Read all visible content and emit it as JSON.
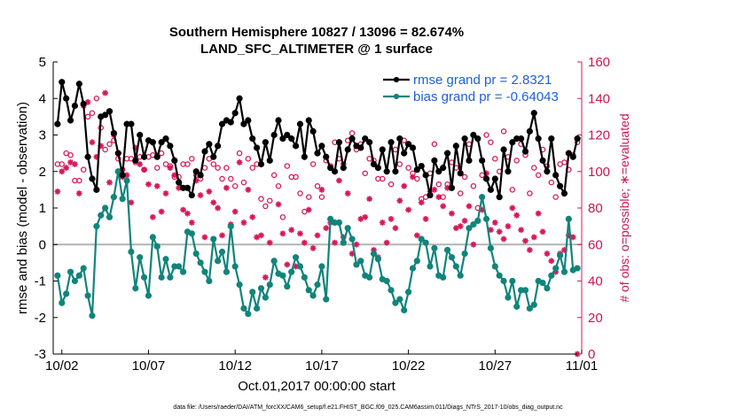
{
  "chart_data": {
    "type": "line",
    "title": "Southern Hemisphere 10827 / 13096 = 82.674%",
    "subtitle": "LAND_SFC_ALTIMETER @ 1 surface",
    "xlabel": "Oct.01,2017 00:00:00 start",
    "ylabel": "rmse and bias (model - observation)",
    "y2label": "# of obs: o=possible; ∗=evaluated",
    "footnote": "data file: /Users/raeder/DAI/ATM_forcXX/CAM6_setup/f.e21.FHIST_BGC.f09_025.CAM6assim.011/Diags_NTrS_2017-10/obs_diag_output.nc",
    "xlim": [
      1.5,
      32.0
    ],
    "ylim": [
      -3,
      5
    ],
    "y2lim": [
      0,
      160
    ],
    "x_tick_values": [
      2,
      7,
      12,
      17,
      22,
      27,
      32
    ],
    "x_tick_labels": [
      "10/02",
      "10/07",
      "10/12",
      "10/17",
      "10/22",
      "10/27",
      "11/01"
    ],
    "y_ticks": [
      -3,
      -2,
      -1,
      0,
      1,
      2,
      3,
      4,
      5
    ],
    "y2_ticks": [
      0,
      20,
      40,
      60,
      80,
      100,
      120,
      140,
      160
    ],
    "grid": false,
    "legend_position": "top-right",
    "colors": {
      "rmse": "#000000",
      "bias": "#11847b",
      "obs": "#d6185a",
      "zero_line": "#b3b3b3",
      "legend_text": "#1f5fd6"
    },
    "x_time": [
      1.75,
      2.0,
      2.25,
      2.5,
      2.75,
      3.0,
      3.25,
      3.5,
      3.75,
      4.0,
      4.25,
      4.5,
      4.75,
      5.0,
      5.25,
      5.5,
      5.75,
      6.0,
      6.25,
      6.5,
      6.75,
      7.0,
      7.25,
      7.5,
      7.75,
      8.0,
      8.25,
      8.5,
      8.75,
      9.0,
      9.25,
      9.5,
      9.75,
      10.0,
      10.25,
      10.5,
      10.75,
      11.0,
      11.25,
      11.5,
      11.75,
      12.0,
      12.25,
      12.5,
      12.75,
      13.0,
      13.25,
      13.5,
      13.75,
      14.0,
      14.25,
      14.5,
      14.75,
      15.0,
      15.25,
      15.5,
      15.75,
      16.0,
      16.25,
      16.5,
      16.75,
      17.0,
      17.25,
      17.5,
      17.75,
      18.0,
      18.25,
      18.5,
      18.75,
      19.0,
      19.25,
      19.5,
      19.75,
      20.0,
      20.25,
      20.5,
      20.75,
      21.0,
      21.25,
      21.5,
      21.75,
      22.0,
      22.25,
      22.5,
      22.75,
      23.0,
      23.25,
      23.5,
      23.75,
      24.0,
      24.25,
      24.5,
      24.75,
      25.0,
      25.25,
      25.5,
      25.75,
      26.0,
      26.25,
      26.5,
      26.75,
      27.0,
      27.25,
      27.5,
      27.75,
      28.0,
      28.25,
      28.5,
      28.75,
      29.0,
      29.25,
      29.5,
      29.75,
      30.0,
      30.25,
      30.5,
      30.75,
      31.0,
      31.25,
      31.5,
      31.75
    ],
    "series": [
      {
        "name": "rmse grand pr = 2.8321",
        "values": [
          3.3,
          4.45,
          4.0,
          3.4,
          3.8,
          4.4,
          3.85,
          2.4,
          1.8,
          1.5,
          3.5,
          3.55,
          3.65,
          3.05,
          2.5,
          1.9,
          3.3,
          3.3,
          2.3,
          3.0,
          2.4,
          2.85,
          2.8,
          2.4,
          2.8,
          2.9,
          2.7,
          2.3,
          1.7,
          1.55,
          1.55,
          1.35,
          2.0,
          1.9,
          2.55,
          2.75,
          2.4,
          2.7,
          3.3,
          3.4,
          3.35,
          3.6,
          4.0,
          3.3,
          3.4,
          2.9,
          2.65,
          2.2,
          2.8,
          2.3,
          3.0,
          3.4,
          2.9,
          3.0,
          2.9,
          2.7,
          3.3,
          2.4,
          3.4,
          3.1,
          2.5,
          2.7,
          2.4,
          2.1,
          2.0,
          2.8,
          2.1,
          2.6,
          2.9,
          2.7,
          2.65,
          2.9,
          2.8,
          2.2,
          2.1,
          2.6,
          2.0,
          2.8,
          2.0,
          2.9,
          2.5,
          2.75,
          2.65,
          2.05,
          2.15,
          1.9,
          1.35,
          2.3,
          2.0,
          2.1,
          2.5,
          1.55,
          2.7,
          1.95,
          2.9,
          2.3,
          3.0,
          2.9,
          2.3,
          1.8,
          1.5,
          1.8,
          1.3,
          2.6,
          2.0,
          2.8,
          2.9,
          2.9,
          2.55,
          3.1,
          3.6,
          2.9,
          2.3,
          2.0,
          2.9,
          1.9,
          1.6,
          1.4,
          2.5,
          2.4,
          2.9
        ]
      },
      {
        "name": "bias grand pr = -0.64043",
        "values": [
          -0.85,
          -1.6,
          -1.35,
          -0.75,
          -1.0,
          -0.85,
          -0.65,
          -1.4,
          -1.95,
          0.5,
          0.8,
          1.0,
          0.75,
          1.3,
          2.0,
          1.25,
          1.75,
          -0.2,
          -1.2,
          -0.35,
          -0.9,
          -1.4,
          0.2,
          -0.05,
          -0.9,
          -0.4,
          -0.9,
          -0.6,
          -0.6,
          -0.75,
          0.35,
          0.3,
          -0.25,
          -0.5,
          -0.75,
          -1.0,
          0.15,
          -0.45,
          -0.2,
          -0.75,
          0.5,
          -0.6,
          -1.1,
          -1.75,
          -1.9,
          -1.3,
          -1.75,
          -1.2,
          -1.45,
          -1.1,
          -0.45,
          -0.8,
          -0.85,
          -1.15,
          -0.75,
          -0.35,
          -0.6,
          -0.9,
          -1.25,
          -1.4,
          -1.1,
          -0.6,
          -1.5,
          0.7,
          0.6,
          0.6,
          0.05,
          0.45,
          0.15,
          -0.55,
          -0.45,
          -0.85,
          -0.9,
          -0.25,
          -0.4,
          -0.95,
          -1.0,
          -1.25,
          -1.6,
          -1.5,
          -1.8,
          -1.3,
          -0.65,
          -0.45,
          0.15,
          0.05,
          -0.6,
          -0.1,
          -0.85,
          -0.9,
          -0.15,
          -0.35,
          -0.6,
          -0.85,
          -0.25,
          0.45,
          0.55,
          0.65,
          1.3,
          0.7,
          -0.1,
          -0.6,
          -0.85,
          -1.0,
          -1.45,
          -1.0,
          -1.7,
          -1.25,
          -1.25,
          -1.75,
          -1.65,
          -1.0,
          -1.05,
          -1.2,
          -0.85,
          -0.65,
          -0.3,
          -0.75,
          0.7,
          -0.7,
          -0.65
        ]
      }
    ],
    "obs_possible": [
      104,
      104,
      110,
      109,
      95,
      95,
      101,
      130,
      132,
      140,
      124,
      112,
      115,
      117,
      107,
      101,
      107,
      107,
      105,
      108,
      101,
      108,
      109,
      102,
      110,
      104,
      103,
      97,
      97,
      104,
      104,
      107,
      98,
      96,
      102,
      107,
      104,
      102,
      96,
      102,
      96,
      92,
      110,
      94,
      107,
      102,
      104,
      85,
      81,
      84,
      98,
      92,
      75,
      103,
      97,
      97,
      88,
      78,
      86,
      104,
      92,
      86,
      106,
      103,
      116,
      107,
      104,
      117,
      121,
      112,
      115,
      99,
      107,
      106,
      96,
      96,
      100,
      93,
      112,
      104,
      117,
      102,
      99,
      96,
      85,
      86,
      99,
      115,
      93,
      86,
      93,
      105,
      102,
      88,
      97,
      115,
      92,
      80,
      98,
      120,
      116,
      107,
      100,
      122,
      108,
      90,
      106,
      115,
      109,
      88,
      102,
      98,
      112,
      103,
      94,
      86,
      104,
      105,
      101,
      109,
      116
    ],
    "obs_evaluated": [
      89,
      100,
      102,
      105,
      104,
      88,
      136,
      138,
      116,
      108,
      114,
      143,
      94,
      120,
      100,
      97,
      98,
      83,
      113,
      104,
      101,
      93,
      75,
      92,
      78,
      88,
      102,
      98,
      91,
      79,
      77,
      72,
      95,
      87,
      64,
      89,
      83,
      80,
      65,
      91,
      71,
      78,
      105,
      72,
      90,
      75,
      64,
      65,
      42,
      61,
      51,
      82,
      66,
      49,
      68,
      48,
      66,
      61,
      79,
      58,
      65,
      90,
      69,
      72,
      61,
      95,
      64,
      88,
      55,
      60,
      74,
      75,
      85,
      57,
      53,
      72,
      61,
      74,
      69,
      84,
      92,
      79,
      97,
      65,
      83,
      74,
      89,
      90,
      86,
      81,
      91,
      77,
      69,
      70,
      73,
      81,
      60,
      73,
      79,
      99,
      68,
      72,
      67,
      63,
      70,
      80,
      76,
      68,
      62,
      57,
      64,
      77,
      67,
      55,
      51,
      45,
      55,
      57,
      65,
      64,
      0
    ]
  }
}
